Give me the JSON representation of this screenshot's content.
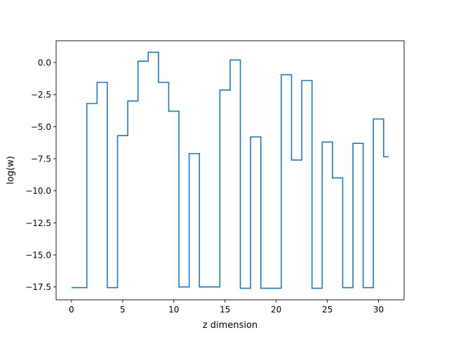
{
  "chart_data": {
    "type": "line",
    "drawstyle": "steps-mid",
    "title": "",
    "xlabel": "z dimension",
    "ylabel": "log(w)",
    "xlim": [
      -1.5,
      32.5
    ],
    "ylim": [
      -18.5,
      1.7
    ],
    "xticks": [
      0,
      5,
      10,
      15,
      20,
      25,
      30
    ],
    "xtick_labels": [
      "0",
      "5",
      "10",
      "15",
      "20",
      "25",
      "30"
    ],
    "yticks": [
      0.0,
      -2.5,
      -5.0,
      -7.5,
      -10.0,
      -12.5,
      -15.0,
      -17.5
    ],
    "ytick_labels": [
      "0.0",
      "−2.5",
      "−5.0",
      "−7.5",
      "−10.0",
      "−12.5",
      "−15.0",
      "−17.5"
    ],
    "grid": false,
    "series": [
      {
        "color": "#1f77b4",
        "x": [
          0,
          1,
          2,
          3,
          4,
          5,
          6,
          7,
          8,
          9,
          10,
          11,
          12,
          13,
          14,
          15,
          16,
          17,
          18,
          19,
          20,
          21,
          22,
          23,
          24,
          25,
          26,
          27,
          28,
          29,
          30,
          31
        ],
        "values": [
          -17.55,
          -17.55,
          -3.2,
          -1.55,
          -17.55,
          -5.7,
          -3.0,
          0.1,
          0.8,
          -1.55,
          -3.8,
          -17.5,
          -7.1,
          -17.5,
          -17.5,
          -2.15,
          0.2,
          -17.6,
          -5.8,
          -17.6,
          -17.6,
          -0.95,
          -7.6,
          -1.4,
          -17.6,
          -6.2,
          -9.0,
          -17.55,
          -6.3,
          -17.55,
          -4.4,
          -7.35
        ]
      }
    ]
  }
}
